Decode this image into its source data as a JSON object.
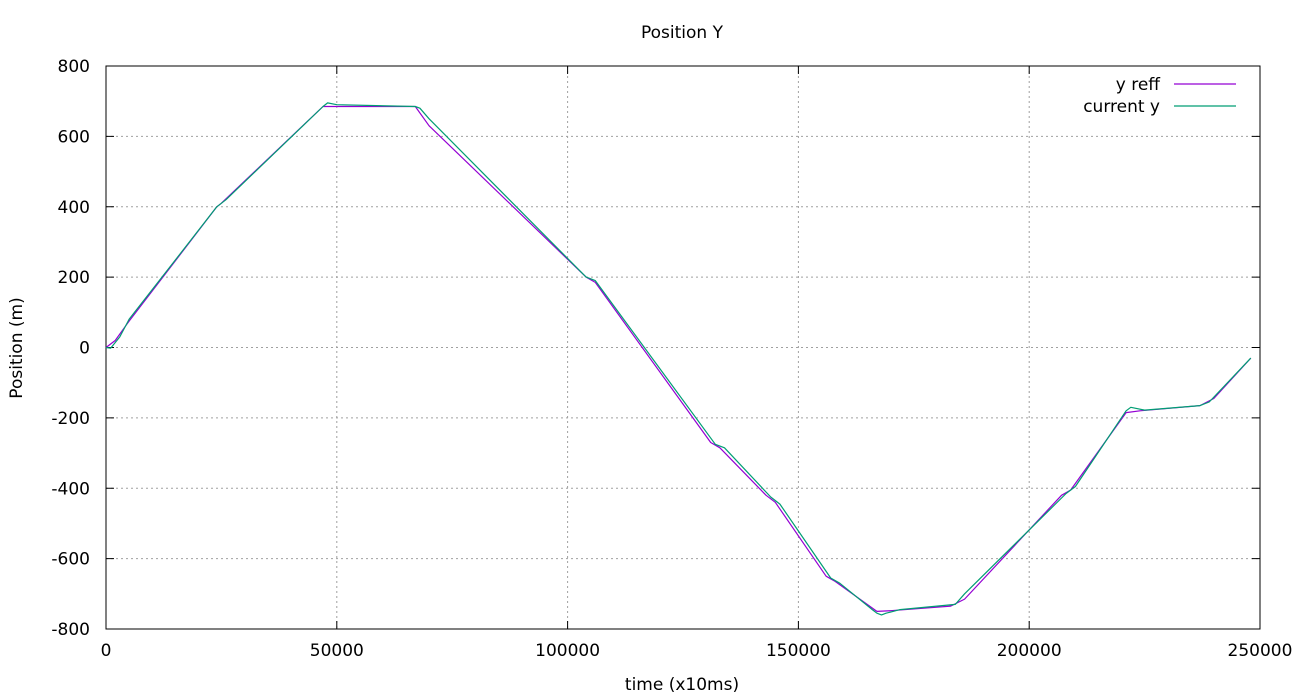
{
  "chart_data": {
    "type": "line",
    "title": "Position Y",
    "xlabel": "time (x10ms)",
    "ylabel": "Position (m)",
    "xlim": [
      0,
      250000
    ],
    "ylim": [
      -800,
      800
    ],
    "xticks": [
      0,
      50000,
      100000,
      150000,
      200000,
      250000
    ],
    "yticks": [
      -800,
      -600,
      -400,
      -200,
      0,
      200,
      400,
      600,
      800
    ],
    "grid": true,
    "legend_position": "top-right",
    "colors": {
      "y_reff": "#9400d3",
      "current_y": "#009e73"
    },
    "series": [
      {
        "name": "y reff",
        "color": "#9400d3",
        "x": [
          0,
          2000,
          5000,
          24000,
          25000,
          47000,
          49000,
          67000,
          70000,
          104000,
          106000,
          131000,
          133000,
          143000,
          145000,
          156000,
          158000,
          167000,
          170000,
          183000,
          186000,
          207000,
          209000,
          221000,
          224000,
          237000,
          240000,
          248000
        ],
        "y": [
          0,
          20,
          75,
          400,
          410,
          685,
          685,
          685,
          630,
          200,
          185,
          -270,
          -285,
          -420,
          -440,
          -650,
          -665,
          -750,
          -748,
          -735,
          -715,
          -420,
          -405,
          -185,
          -180,
          -165,
          -145,
          -30
        ]
      },
      {
        "name": "current y",
        "color": "#009e73",
        "x": [
          0,
          1000,
          3000,
          5000,
          24000,
          26000,
          47000,
          48000,
          50000,
          67000,
          68000,
          70000,
          104000,
          106000,
          132000,
          134000,
          144000,
          146000,
          157000,
          159000,
          166000,
          167000,
          168000,
          169000,
          172000,
          184000,
          186000,
          208000,
          210000,
          221000,
          222000,
          225000,
          237000,
          239000,
          248000
        ],
        "y": [
          0,
          -2,
          30,
          80,
          400,
          420,
          685,
          695,
          690,
          685,
          680,
          650,
          200,
          190,
          -275,
          -285,
          -425,
          -445,
          -655,
          -670,
          -745,
          -755,
          -760,
          -755,
          -745,
          -730,
          -700,
          -415,
          -395,
          -180,
          -170,
          -178,
          -165,
          -155,
          -30
        ]
      }
    ]
  }
}
